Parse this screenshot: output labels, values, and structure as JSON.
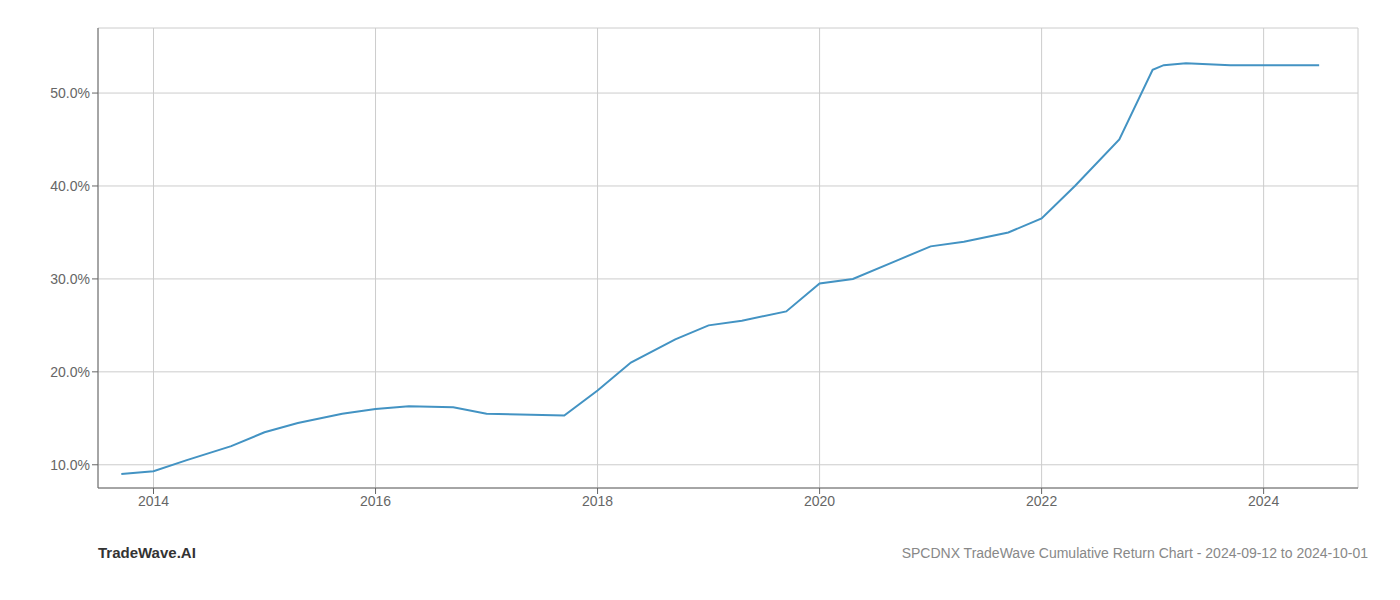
{
  "chart_data": {
    "type": "line",
    "title": "SPCDNX TradeWave Cumulative Return Chart - 2024-09-12 to 2024-10-01",
    "annotations": [
      "TradeWave.AI"
    ],
    "color": "#4393c3",
    "grid": true,
    "x": [
      2013.71,
      2014.0,
      2014.3,
      2014.7,
      2015.0,
      2015.3,
      2015.7,
      2016.0,
      2016.3,
      2016.7,
      2017.0,
      2017.3,
      2017.7,
      2018.0,
      2018.3,
      2018.7,
      2019.0,
      2019.3,
      2019.7,
      2020.0,
      2020.3,
      2020.7,
      2021.0,
      2021.3,
      2021.7,
      2022.0,
      2022.3,
      2022.7,
      2023.0,
      2023.1,
      2023.3,
      2023.5,
      2023.7,
      2024.0,
      2024.5
    ],
    "values": [
      9.0,
      9.3,
      10.5,
      12.0,
      13.5,
      14.5,
      15.5,
      16.0,
      16.3,
      16.2,
      15.5,
      15.4,
      15.3,
      18.0,
      21.0,
      23.5,
      25.0,
      25.5,
      26.5,
      29.5,
      30.0,
      32.0,
      33.5,
      34.0,
      35.0,
      36.5,
      40.0,
      45.0,
      52.5,
      53.0,
      53.2,
      53.1,
      53.0,
      53.0,
      53.0
    ],
    "xlim": [
      2013.5,
      2024.85
    ],
    "ylim": [
      7.5,
      57.0
    ],
    "xticks": [
      2014,
      2016,
      2018,
      2020,
      2022,
      2024
    ],
    "yticks": [
      {
        "value": 10.0,
        "label": "10.0%"
      },
      {
        "value": 20.0,
        "label": "20.0%"
      },
      {
        "value": 30.0,
        "label": "30.0%"
      },
      {
        "value": 40.0,
        "label": "40.0%"
      },
      {
        "value": 50.0,
        "label": "50.0%"
      }
    ]
  }
}
